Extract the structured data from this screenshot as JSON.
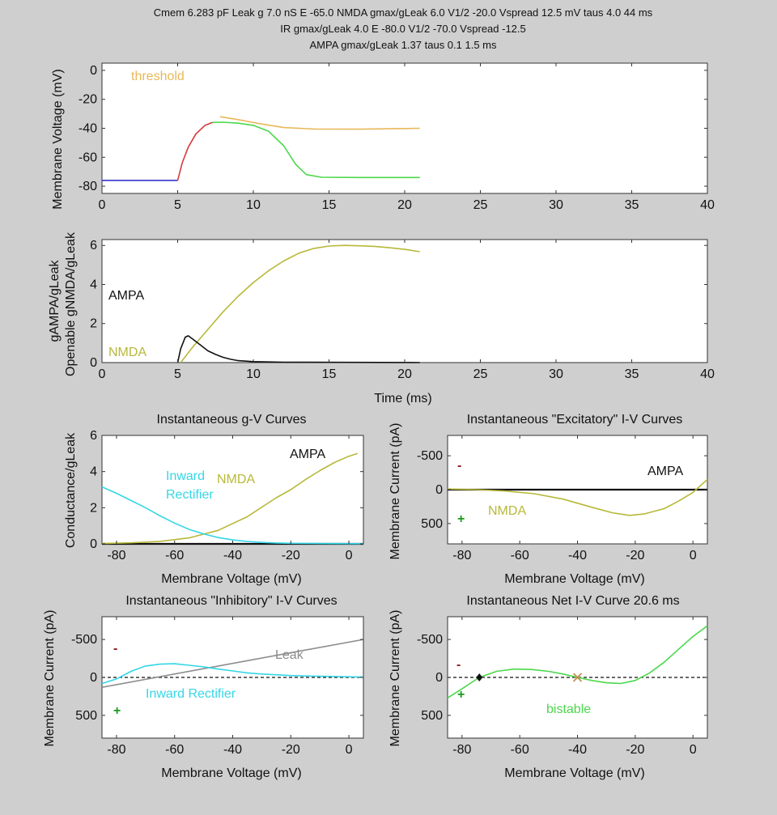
{
  "header": {
    "line1": "Cmem 6.283 pF Leak g  7.0 nS E -65.0 NMDA gmax/gLeak  6.0 V1/2 -20.0 Vspread 12.5 mV taus  4.0   44 ms",
    "line2": "IR gmax/gLeak  4.0 E -80.0 V1/2 -70.0 Vspread -12.5",
    "line3": "AMPA gmax/gLeak  1.37 taus  0.1  1.5 ms"
  },
  "colors": {
    "panel_bg": "#ffffff",
    "figure_bg": "#cfcfcf",
    "threshold": "#e8b85a",
    "ampa": "#111111",
    "nmda": "#b8b83a",
    "inward_rectifier": "#35d6e6",
    "leak": "#8c8c8c",
    "net": "#4bd84b",
    "voltage_blue": "#3333cc",
    "voltage_red": "#d63a3a",
    "minus_sign": "#8b1a1a",
    "plus_sign": "#1a9a1a"
  },
  "chart_data": [
    {
      "id": "voltage",
      "type": "line",
      "ylabel": "Membrane Voltage (mV)",
      "xlim": [
        0,
        40
      ],
      "ylim": [
        -85,
        5
      ],
      "xticks": [
        "0",
        "5",
        "10",
        "15",
        "20",
        "25",
        "30",
        "35",
        "40"
      ],
      "yticks": [
        "0",
        "-20",
        "-40",
        "-60",
        "-80"
      ],
      "annotation": "threshold",
      "series": [
        {
          "name": "voltage-rest",
          "color": "#3333cc",
          "points": [
            [
              0,
              -76
            ],
            [
              5,
              -76
            ]
          ]
        },
        {
          "name": "voltage-rise",
          "color": "#d63a3a",
          "points": [
            [
              5,
              -76
            ],
            [
              5.3,
              -64
            ],
            [
              5.7,
              -53
            ],
            [
              6.2,
              -44
            ],
            [
              6.8,
              -38
            ],
            [
              7.3,
              -36
            ]
          ]
        },
        {
          "name": "voltage-plateau",
          "color": "#4bd84b",
          "points": [
            [
              7.3,
              -36
            ],
            [
              8,
              -35.8
            ],
            [
              9,
              -36.5
            ],
            [
              10,
              -38
            ],
            [
              11,
              -42
            ],
            [
              12,
              -52
            ],
            [
              12.8,
              -65
            ],
            [
              13.5,
              -72
            ],
            [
              14.5,
              -73.8
            ],
            [
              17,
              -74
            ],
            [
              21,
              -74
            ]
          ]
        },
        {
          "name": "threshold",
          "color": "#e8b85a",
          "points": [
            [
              7.8,
              -32
            ],
            [
              9,
              -34
            ],
            [
              10.5,
              -37
            ],
            [
              12,
              -39.5
            ],
            [
              14,
              -40.5
            ],
            [
              17,
              -40.6
            ],
            [
              21,
              -40
            ]
          ]
        }
      ]
    },
    {
      "id": "conductance",
      "type": "line",
      "ylabel": "gAMPA/gLeak",
      "ylabel2": "Openable gNMDA/gLeak",
      "xlabel": "Time (ms)",
      "xlim": [
        0,
        40
      ],
      "ylim": [
        0,
        6.3
      ],
      "xticks": [
        "0",
        "5",
        "10",
        "15",
        "20",
        "25",
        "30",
        "35",
        "40"
      ],
      "yticks": [
        "0",
        "2",
        "4",
        "6"
      ],
      "annotations": [
        "AMPA",
        "NMDA"
      ],
      "series": [
        {
          "name": "NMDA",
          "color": "#b8b83a",
          "points": [
            [
              5.2,
              0
            ],
            [
              6,
              0.8
            ],
            [
              7,
              1.7
            ],
            [
              8,
              2.6
            ],
            [
              9,
              3.4
            ],
            [
              10,
              4.1
            ],
            [
              11,
              4.7
            ],
            [
              12,
              5.2
            ],
            [
              13,
              5.6
            ],
            [
              14,
              5.85
            ],
            [
              15,
              5.97
            ],
            [
              16,
              6.0
            ],
            [
              17,
              5.98
            ],
            [
              18,
              5.95
            ],
            [
              19,
              5.88
            ],
            [
              20,
              5.8
            ],
            [
              21,
              5.68
            ]
          ]
        },
        {
          "name": "AMPA",
          "color": "#111111",
          "points": [
            [
              5,
              0
            ],
            [
              5.2,
              0.7
            ],
            [
              5.5,
              1.3
            ],
            [
              5.7,
              1.37
            ],
            [
              6,
              1.2
            ],
            [
              6.5,
              0.9
            ],
            [
              7,
              0.6
            ],
            [
              7.5,
              0.42
            ],
            [
              8,
              0.27
            ],
            [
              8.5,
              0.17
            ],
            [
              9,
              0.1
            ],
            [
              10,
              0.05
            ],
            [
              12,
              0.02
            ],
            [
              21,
              0.0
            ]
          ]
        }
      ]
    },
    {
      "id": "gv",
      "type": "line",
      "title": "Instantaneous g-V Curves",
      "xlabel": "Membrane Voltage  (mV)",
      "ylabel": "Conductance/gLeak",
      "xlim": [
        -85,
        5
      ],
      "ylim": [
        0,
        6
      ],
      "xticks": [
        "-80",
        "-60",
        "-40",
        "-20",
        "0"
      ],
      "yticks": [
        "0",
        "2",
        "4",
        "6"
      ],
      "annotations": [
        "AMPA",
        "NMDA",
        "Inward",
        "Rectifier"
      ],
      "series": [
        {
          "name": "AMPA",
          "color": "#111111",
          "points": [
            [
              -85,
              0
            ],
            [
              5,
              0
            ]
          ]
        },
        {
          "name": "NMDA",
          "color": "#b8b83a",
          "points": [
            [
              -85,
              0.02
            ],
            [
              -75,
              0.06
            ],
            [
              -65,
              0.14
            ],
            [
              -55,
              0.33
            ],
            [
              -45,
              0.75
            ],
            [
              -35,
              1.5
            ],
            [
              -25,
              2.55
            ],
            [
              -20,
              3.0
            ],
            [
              -15,
              3.55
            ],
            [
              -10,
              4.05
            ],
            [
              -5,
              4.5
            ],
            [
              0,
              4.85
            ],
            [
              3,
              5.0
            ]
          ]
        },
        {
          "name": "Inward Rectifier",
          "color": "#35d6e6",
          "points": [
            [
              -85,
              3.15
            ],
            [
              -80,
              2.8
            ],
            [
              -75,
              2.4
            ],
            [
              -70,
              2.0
            ],
            [
              -65,
              1.55
            ],
            [
              -60,
              1.15
            ],
            [
              -55,
              0.8
            ],
            [
              -50,
              0.55
            ],
            [
              -45,
              0.35
            ],
            [
              -40,
              0.22
            ],
            [
              -35,
              0.13
            ],
            [
              -30,
              0.08
            ],
            [
              -25,
              0.05
            ],
            [
              -20,
              0.03
            ],
            [
              -10,
              0.02
            ],
            [
              5,
              0.01
            ]
          ]
        }
      ]
    },
    {
      "id": "exc-iv",
      "type": "line",
      "title": "Instantaneous \"Excitatory\" I-V Curves",
      "xlabel": "Membrane Voltage  (mV)",
      "ylabel": "Membrane Current (pA)",
      "xlim": [
        -85,
        5
      ],
      "ylim": [
        -800,
        800
      ],
      "xticks": [
        "-80",
        "-60",
        "-40",
        "-20",
        "0"
      ],
      "yticks": [
        "-500",
        "0",
        "500"
      ],
      "annotations": [
        "AMPA",
        "NMDA"
      ],
      "signs": [
        "-",
        "+"
      ],
      "series": [
        {
          "name": "AMPA",
          "color": "#111111",
          "points": [
            [
              -85,
              0
            ],
            [
              5,
              0
            ]
          ]
        },
        {
          "name": "NMDA",
          "color": "#b8b83a",
          "points": [
            [
              -85,
              -10
            ],
            [
              -75,
              0
            ],
            [
              -65,
              20
            ],
            [
              -55,
              60
            ],
            [
              -45,
              140
            ],
            [
              -35,
              260
            ],
            [
              -28,
              340
            ],
            [
              -22,
              380
            ],
            [
              -17,
              360
            ],
            [
              -10,
              280
            ],
            [
              -5,
              170
            ],
            [
              0,
              40
            ],
            [
              5,
              -150
            ]
          ]
        }
      ]
    },
    {
      "id": "inh-iv",
      "type": "line",
      "title": "Instantaneous \"Inhibitory\" I-V Curves",
      "xlabel": "Membrane Voltage  (mV)",
      "ylabel": "Membrane Current (pA)",
      "xlim": [
        -85,
        5
      ],
      "ylim": [
        -800,
        800
      ],
      "xticks": [
        "-80",
        "-60",
        "-40",
        "-20",
        "0"
      ],
      "yticks": [
        "-500",
        "0",
        "500"
      ],
      "annotations": [
        "Leak",
        "Inward Rectifier"
      ],
      "signs": [
        "-",
        "+"
      ],
      "series": [
        {
          "name": "Leak",
          "color": "#8c8c8c",
          "points": [
            [
              -85,
              130
            ],
            [
              5,
              -500
            ]
          ]
        },
        {
          "name": "Inward Rectifier",
          "color": "#35d6e6",
          "points": [
            [
              -85,
              80
            ],
            [
              -80,
              20
            ],
            [
              -75,
              -80
            ],
            [
              -70,
              -150
            ],
            [
              -65,
              -175
            ],
            [
              -60,
              -180
            ],
            [
              -55,
              -160
            ],
            [
              -50,
              -140
            ],
            [
              -45,
              -110
            ],
            [
              -40,
              -85
            ],
            [
              -35,
              -60
            ],
            [
              -30,
              -45
            ],
            [
              -20,
              -25
            ],
            [
              -10,
              -15
            ],
            [
              5,
              -5
            ]
          ]
        }
      ]
    },
    {
      "id": "net-iv",
      "type": "line",
      "title": "Instantaneous Net I-V Curve   20.6 ms",
      "xlabel": "Membrane Voltage  (mV)",
      "ylabel": "Membrane Current (pA)",
      "xlim": [
        -85,
        5
      ],
      "ylim": [
        -800,
        800
      ],
      "xticks": [
        "-80",
        "-60",
        "-40",
        "-20",
        "0"
      ],
      "yticks": [
        "-500",
        "0",
        "500"
      ],
      "annotations": [
        "bistable"
      ],
      "signs": [
        "-",
        "+"
      ],
      "fixed_points": [
        {
          "name": "stable",
          "v": -74,
          "i": 0,
          "marker": "diamond",
          "color": "#111111"
        },
        {
          "name": "unstable",
          "v": -40,
          "i": 0,
          "marker": "x",
          "color": "#c8884a"
        }
      ],
      "series": [
        {
          "name": "Net",
          "color": "#4bd84b",
          "points": [
            [
              -85,
              270
            ],
            [
              -80,
              150
            ],
            [
              -74,
              0
            ],
            [
              -68,
              -80
            ],
            [
              -62,
              -110
            ],
            [
              -56,
              -105
            ],
            [
              -50,
              -80
            ],
            [
              -45,
              -45
            ],
            [
              -40,
              0
            ],
            [
              -35,
              40
            ],
            [
              -30,
              70
            ],
            [
              -25,
              80
            ],
            [
              -20,
              40
            ],
            [
              -15,
              -60
            ],
            [
              -10,
              -200
            ],
            [
              -5,
              -370
            ],
            [
              0,
              -540
            ],
            [
              5,
              -680
            ]
          ]
        }
      ]
    }
  ]
}
